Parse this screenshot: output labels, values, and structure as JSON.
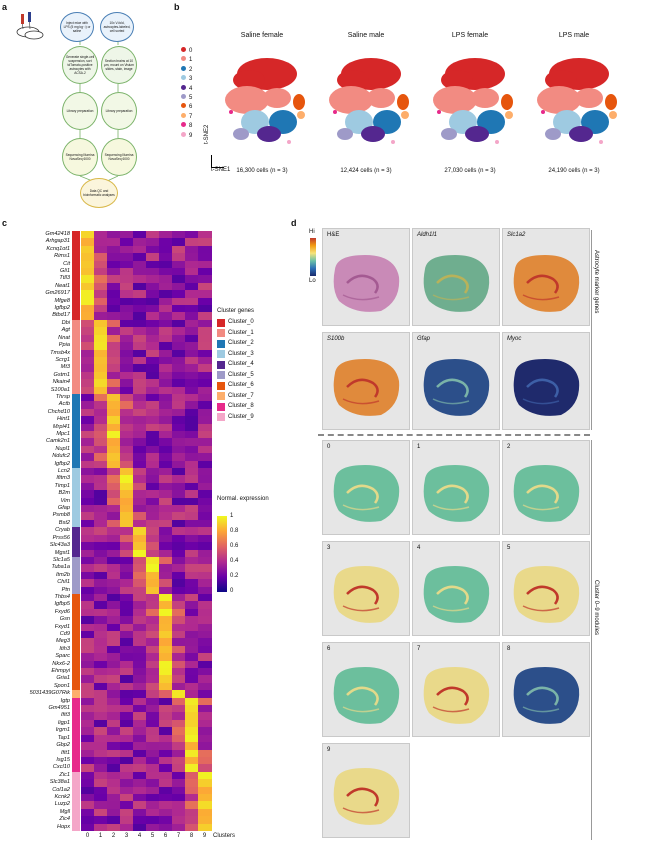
{
  "panels": {
    "a": "a",
    "b": "b",
    "c": "c",
    "d": "d"
  },
  "panel_a": {
    "steps": [
      "Inject mice with LPS (5 mg kg⁻¹) or saline",
      "10x V-fold, astrocytes-labeled, cell sorted",
      "Generate single-cell suspension, sort tdTomato-positive astrocytes with ACSA-2",
      "Section brains at 10 µm, mount on Visium slides, stain, image",
      "Library preparation",
      "Library preparation",
      "Sequencing Illumina NovaSeq 6000",
      "Sequencing Illumina NovaSeq 6000",
      "Data QC and bioinformatic analyses"
    ]
  },
  "panel_b": {
    "legend": [
      "0",
      "1",
      "2",
      "3",
      "4",
      "5",
      "6",
      "7",
      "8",
      "9"
    ],
    "colors": [
      "#d62728",
      "#f28b82",
      "#1f77b4",
      "#9ecae1",
      "#54278f",
      "#9e9ac8",
      "#e6550d",
      "#fdae6b",
      "#e7298a",
      "#f4a6c8"
    ],
    "plots": [
      {
        "title": "Saline female",
        "cells": "16,300 cells (n = 3)"
      },
      {
        "title": "Saline male",
        "cells": "12,424 cells (n = 3)"
      },
      {
        "title": "LPS female",
        "cells": "27,030 cells (n = 3)"
      },
      {
        "title": "LPS male",
        "cells": "24,190 cells (n = 3)"
      }
    ],
    "axis_x": "t-SNE1",
    "axis_y": "t-SNE2"
  },
  "panel_c": {
    "genes": [
      "Gm42418",
      "Arhgap31",
      "Kcnq1ot1",
      "Rims1",
      "Cit",
      "Gli1",
      "Ttll3",
      "Neat1",
      "Gm26917",
      "Mfge8",
      "Igfbp2",
      "Btbd17",
      "Dbi",
      "Agt",
      "Nnat",
      "Ppia",
      "Tmsb4x",
      "Scrg1",
      "Mt3",
      "Gstm1",
      "Nkain4",
      "S100a1",
      "Thrsp",
      "Actb",
      "Chchd10",
      "Hint1",
      "Mrpl41",
      "Mpc1",
      "Camk2n1",
      "Nupl1",
      "Ndufc2",
      "Igfbp2",
      "Lcn2",
      "Ifitm3",
      "Timp1",
      "B2m",
      "Vim",
      "Gfap",
      "Psmb8",
      "Bst2",
      "Cryab",
      "Prss56",
      "Slc43a3",
      "Mgst1",
      "Slc1a5",
      "Tuba1a",
      "Itm2b",
      "Chil1",
      "Ptn",
      "Thbs4",
      "Igfbp5",
      "Fxyd6",
      "Gsn",
      "Fxyd1",
      "Cd9",
      "Meg3",
      "Itih3",
      "Sparc",
      "Nkx6-2",
      "Ehmpyi",
      "Gria1",
      "Spon1",
      "5031439G07Rik",
      "Igtp",
      "Gm4951",
      "Ifit3",
      "Iigp1",
      "Irgm1",
      "Tap1",
      "Gbp2",
      "Ifit1",
      "Isg15",
      "Cxcl10",
      "Zic1",
      "Slc38a1",
      "Col1a2",
      "Kcnk2",
      "Luzp2",
      "Mgll",
      "Zic4",
      "Hopx"
    ],
    "cluster_ticks": [
      "0",
      "1",
      "2",
      "3",
      "4",
      "5",
      "6",
      "7",
      "8",
      "9"
    ],
    "xlabel": "Clusters",
    "legend_title": "Cluster genes",
    "legend_items": [
      "Cluster_0",
      "Cluster_1",
      "Cluster_2",
      "Cluster_3",
      "Cluster_4",
      "Cluster_5",
      "Cluster_6",
      "Cluster_7",
      "Cluster_8",
      "Cluster_9"
    ],
    "scale_title": "Normal. expression",
    "scale_ticks": [
      "1",
      "0.8",
      "0.6",
      "0.4",
      "0.2",
      "0"
    ]
  },
  "panel_d": {
    "hi": "Hi",
    "lo": "Lo",
    "marker_tiles": [
      "H&E",
      "Aldh1l1",
      "Slc1a2",
      "S100b",
      "Gfap",
      "Myoc"
    ],
    "module_tiles": [
      "0",
      "1",
      "2",
      "3",
      "4",
      "5",
      "6",
      "7",
      "8",
      "9"
    ],
    "side_top": "Astrocyte marker genes",
    "side_bottom": "Cluster 0–9 modules"
  }
}
